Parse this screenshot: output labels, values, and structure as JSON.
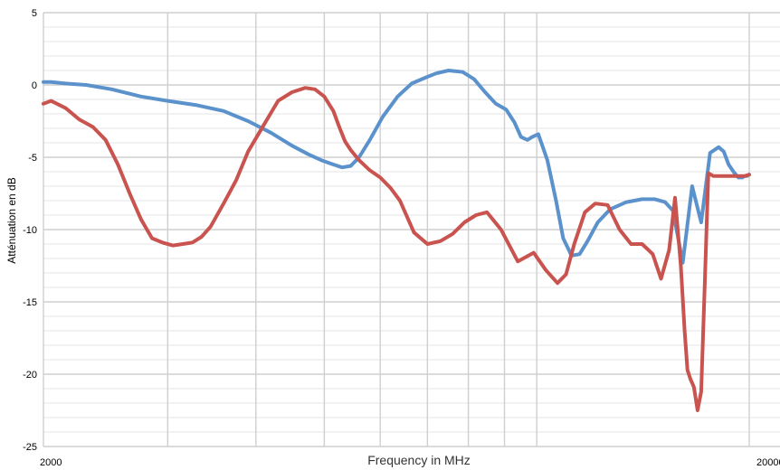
{
  "chart_data": {
    "type": "line",
    "xlabel": "Frequency in MHz",
    "ylabel": "Atténuation en dB",
    "xscale": "log",
    "xlim": [
      2000,
      20000
    ],
    "ylim": [
      -25,
      5
    ],
    "x_tick_labels": [
      "2000",
      "20000"
    ],
    "y_ticks": [
      5,
      0,
      -5,
      -10,
      -15,
      -20,
      -25
    ],
    "y_tick_labels": [
      "5",
      "0",
      "-5",
      "-10",
      "-15",
      "-20",
      "-25"
    ],
    "grid": true,
    "legend": "none",
    "colors": {
      "blue": "#5b92cc",
      "red": "#c9534f",
      "major_grid": "#cfcfcf",
      "minor_grid": "#e4e4e4"
    },
    "series": [
      {
        "color": "#5b92cc",
        "x": [
          2000,
          2050,
          2150,
          2300,
          2500,
          2750,
          3000,
          3300,
          3600,
          3900,
          4200,
          4500,
          4750,
          4950,
          5150,
          5300,
          5450,
          5600,
          5800,
          6050,
          6350,
          6650,
          6950,
          7200,
          7500,
          7850,
          8150,
          8450,
          8750,
          9050,
          9300,
          9500,
          9700,
          9850,
          10050,
          10350,
          10650,
          10900,
          11200,
          11500,
          11800,
          12200,
          12700,
          13400,
          14100,
          14700,
          15200,
          15600,
          16100,
          16600,
          17100,
          17600,
          18100,
          18400,
          18700,
          19000,
          19300,
          19550,
          19700,
          19850,
          20000
        ],
        "y": [
          0.2,
          0.2,
          0.1,
          0.0,
          -0.3,
          -0.8,
          -1.1,
          -1.4,
          -1.8,
          -2.5,
          -3.3,
          -4.2,
          -4.8,
          -5.2,
          -5.5,
          -5.7,
          -5.6,
          -5.0,
          -3.8,
          -2.2,
          -0.8,
          0.1,
          0.5,
          0.8,
          1.0,
          0.9,
          0.4,
          -0.5,
          -1.3,
          -1.7,
          -2.6,
          -3.6,
          -3.8,
          -3.6,
          -3.4,
          -5.2,
          -8.0,
          -10.6,
          -11.8,
          -11.7,
          -10.8,
          -9.5,
          -8.6,
          -8.1,
          -7.9,
          -7.9,
          -8.1,
          -8.7,
          -12.3,
          -7.0,
          -9.5,
          -4.7,
          -4.3,
          -4.6,
          -5.5,
          -6.0,
          -6.4,
          -6.4,
          -6.3,
          -6.3,
          -6.2
        ]
      },
      {
        "color": "#c9534f",
        "x": [
          2000,
          2050,
          2150,
          2250,
          2350,
          2450,
          2550,
          2650,
          2750,
          2850,
          2950,
          3050,
          3150,
          3250,
          3350,
          3450,
          3600,
          3750,
          3900,
          4100,
          4300,
          4500,
          4700,
          4850,
          5000,
          5150,
          5250,
          5350,
          5450,
          5600,
          5800,
          6000,
          6200,
          6400,
          6700,
          7000,
          7300,
          7600,
          7900,
          8200,
          8500,
          8900,
          9400,
          9900,
          10300,
          10700,
          11000,
          11300,
          11700,
          12100,
          12600,
          13100,
          13600,
          14100,
          14600,
          15000,
          15400,
          15700,
          16000,
          16200,
          16350,
          16500,
          16700,
          16900,
          17100,
          17300,
          17500,
          17650,
          17800,
          17900,
          18050,
          18200,
          18400,
          18700,
          19000,
          19300,
          19500,
          19700,
          20000
        ],
        "y": [
          -1.3,
          -1.1,
          -1.6,
          -2.4,
          -2.9,
          -3.8,
          -5.5,
          -7.5,
          -9.3,
          -10.6,
          -10.9,
          -11.1,
          -11.0,
          -10.9,
          -10.5,
          -9.8,
          -8.2,
          -6.6,
          -4.6,
          -2.8,
          -1.1,
          -0.5,
          -0.2,
          -0.3,
          -0.8,
          -1.8,
          -2.9,
          -3.9,
          -4.5,
          -5.2,
          -5.9,
          -6.4,
          -7.1,
          -8.0,
          -10.2,
          -11.0,
          -10.8,
          -10.3,
          -9.5,
          -9.0,
          -8.8,
          -10.0,
          -12.2,
          -11.6,
          -12.8,
          -13.7,
          -13.1,
          -11.0,
          -8.8,
          -8.2,
          -8.3,
          -10.0,
          -11.0,
          -11.0,
          -11.7,
          -13.4,
          -11.4,
          -7.8,
          -12.5,
          -17.0,
          -19.7,
          -20.3,
          -20.9,
          -22.5,
          -21.2,
          -13.7,
          -6.1,
          -6.2,
          -6.3,
          -6.3,
          -6.3,
          -6.3,
          -6.3,
          -6.3,
          -6.3,
          -6.3,
          -6.3,
          -6.3,
          -6.2
        ]
      }
    ]
  }
}
